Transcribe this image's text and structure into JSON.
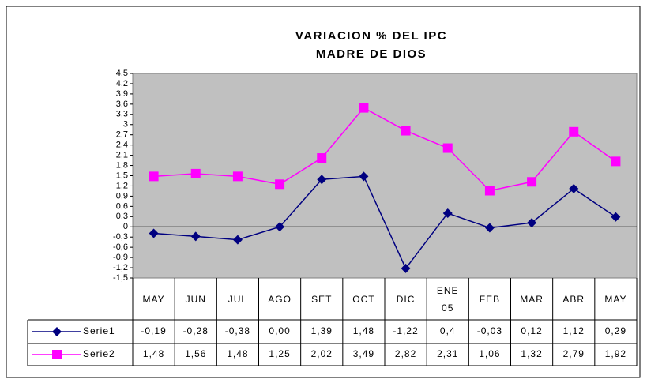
{
  "chart_data": {
    "type": "line",
    "title": [
      "VARIACION % DEL IPC",
      "MADRE DE DIOS"
    ],
    "categories": [
      "MAY",
      "JUN",
      "JUL",
      "AGO",
      "SET",
      "OCT",
      "DIC",
      "ENE 05",
      "FEB",
      "MAR",
      "ABR",
      "MAY"
    ],
    "series": [
      {
        "name": "Serie1",
        "color": "#000080",
        "marker": "diamond",
        "values": [
          -0.19,
          -0.28,
          -0.38,
          0.0,
          1.39,
          1.48,
          -1.22,
          0.4,
          -0.03,
          0.12,
          1.12,
          0.29
        ],
        "value_labels": [
          "-0,19",
          "-0,28",
          "-0,38",
          "0,00",
          "1,39",
          "1,48",
          "-1,22",
          "0,4",
          "-0,03",
          "0,12",
          "1,12",
          "0,29"
        ]
      },
      {
        "name": "Serie2",
        "color": "#ff00ff",
        "marker": "square",
        "values": [
          1.48,
          1.56,
          1.48,
          1.25,
          2.02,
          3.49,
          2.82,
          2.31,
          1.06,
          1.32,
          2.79,
          1.92
        ],
        "value_labels": [
          "1,48",
          "1,56",
          "1,48",
          "1,25",
          "2,02",
          "3,49",
          "2,82",
          "2,31",
          "1,06",
          "1,32",
          "2,79",
          "1,92"
        ]
      }
    ],
    "ylim": [
      -1.5,
      4.5
    ],
    "yticks": [
      {
        "value": -1.5,
        "label": "-1,5"
      },
      {
        "value": -1.2,
        "label": "-1,2"
      },
      {
        "value": -0.9,
        "label": "-0,9"
      },
      {
        "value": -0.6,
        "label": "-0,6"
      },
      {
        "value": -0.3,
        "label": "-0,3"
      },
      0,
      {
        "value": 0.3,
        "label": "0,3"
      },
      {
        "value": 0.6,
        "label": "0,6"
      },
      {
        "value": 0.9,
        "label": "0,9"
      },
      {
        "value": 1.2,
        "label": "1,2"
      },
      {
        "value": 1.5,
        "label": "1,5"
      },
      {
        "value": 1.8,
        "label": "1,8"
      },
      {
        "value": 2.1,
        "label": "2,1"
      },
      {
        "value": 2.4,
        "label": "2,4"
      },
      {
        "value": 2.7,
        "label": "2,7"
      },
      3,
      {
        "value": 3.3,
        "label": "3,3"
      },
      {
        "value": 3.6,
        "label": "3,6"
      },
      {
        "value": 3.9,
        "label": "3,9"
      },
      {
        "value": 4.2,
        "label": "4,2"
      },
      {
        "value": 4.5,
        "label": "4,5"
      }
    ],
    "plot_background": "#c0c0c0"
  }
}
